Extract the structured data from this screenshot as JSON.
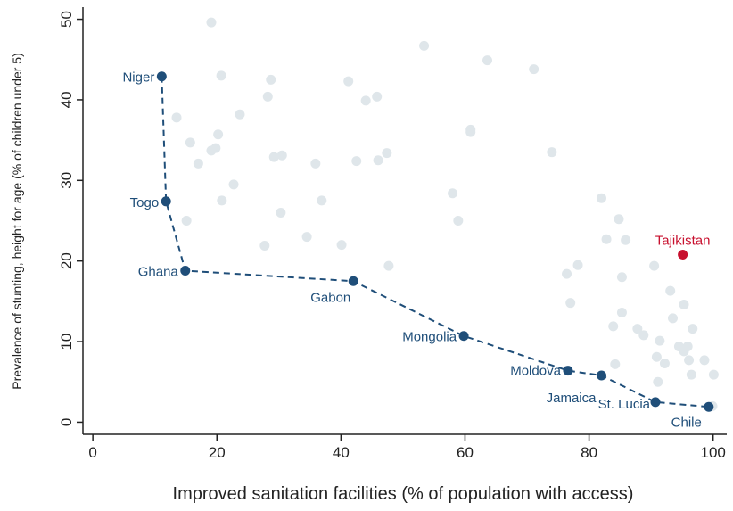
{
  "chart_data": {
    "type": "scatter",
    "x_label": "Improved sanitation facilities (% of population with access)",
    "y_label": "Prevalence of stunting, height for age (% of children under 5)",
    "xlim": [
      -1.6,
      102.2
    ],
    "ylim": [
      -1.5,
      51.5
    ],
    "xticks": [
      0,
      20,
      40,
      60,
      80,
      100
    ],
    "yticks": [
      0,
      10,
      20,
      30,
      40,
      50
    ],
    "grid": false,
    "points": {
      "color": "#dfe6ea",
      "x": [
        19.1,
        20.7,
        28.7,
        41.2,
        53.4,
        63.6,
        71.1,
        13.5,
        23.7,
        28.2,
        44.0,
        45.8,
        20.2,
        15.7,
        19.8,
        19.1,
        17.0,
        29.2,
        30.5,
        35.9,
        42.5,
        46.0,
        47.4,
        60.9,
        60.9,
        74.0,
        22.7,
        20.8,
        36.9,
        30.3,
        58.0,
        58.9,
        15.1,
        27.7,
        34.5,
        40.1,
        47.7,
        82.0,
        84.8,
        82.8,
        85.9,
        78.2,
        76.4,
        77.0,
        85.3,
        90.5,
        93.1,
        95.3,
        85.3,
        83.9,
        87.8,
        88.8,
        93.5,
        96.7,
        91.4,
        94.5,
        95.9,
        95.3,
        90.9,
        92.2,
        96.1,
        98.6,
        84.2,
        96.5,
        100.1,
        91.1,
        99.9
      ],
      "y": [
        49.6,
        43.0,
        42.5,
        42.3,
        46.7,
        44.9,
        43.8,
        37.8,
        38.2,
        40.4,
        39.9,
        40.4,
        35.7,
        34.7,
        34.0,
        33.7,
        32.1,
        32.9,
        33.1,
        32.1,
        32.4,
        32.5,
        33.4,
        36.3,
        36.0,
        33.5,
        29.5,
        27.5,
        27.5,
        26.0,
        28.4,
        25.0,
        25.0,
        21.9,
        23.0,
        22.0,
        19.4,
        27.8,
        25.2,
        22.7,
        22.6,
        19.5,
        18.4,
        14.8,
        18.0,
        19.4,
        16.3,
        14.6,
        13.6,
        11.9,
        11.6,
        10.8,
        12.9,
        11.6,
        10.1,
        9.4,
        9.4,
        8.8,
        8.1,
        7.3,
        7.7,
        7.7,
        7.2,
        5.9,
        5.9,
        5.0,
        2.0
      ]
    },
    "frontier": {
      "color": "#1f4e79",
      "labels": [
        "Niger",
        "Togo",
        "Ghana",
        "Gabon",
        "Mongolia",
        "Moldova",
        "Jamaica",
        "St. Lucia",
        "Chile"
      ],
      "x": [
        11.1,
        11.8,
        14.9,
        42.0,
        59.8,
        76.6,
        82.0,
        90.7,
        99.3
      ],
      "y": [
        42.9,
        27.4,
        18.8,
        17.5,
        10.7,
        6.4,
        5.8,
        2.5,
        1.9
      ]
    },
    "highlight": {
      "color": "#c8102e",
      "label": "Tajikistan",
      "x": 95.1,
      "y": 20.8
    }
  }
}
